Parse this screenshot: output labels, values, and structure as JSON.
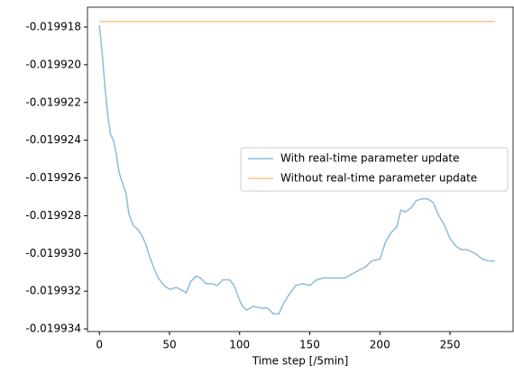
{
  "chart_data": {
    "type": "line",
    "xlabel": "Time step [/5min]",
    "xlim": [
      -8.5,
      295
    ],
    "ylim": [
      -0.01993414,
      -0.01991695
    ],
    "xticks": [
      0,
      50,
      100,
      150,
      200,
      250
    ],
    "yticks": [
      {
        "value": -0.019918,
        "label": "-0.019918"
      },
      {
        "value": -0.01992,
        "label": "-0.019920"
      },
      {
        "value": -0.019922,
        "label": "-0.019922"
      },
      {
        "value": -0.019924,
        "label": "-0.019924"
      },
      {
        "value": -0.019926,
        "label": "-0.019926"
      },
      {
        "value": -0.019928,
        "label": "-0.019928"
      },
      {
        "value": -0.01993,
        "label": "-0.019930"
      },
      {
        "value": -0.019932,
        "label": "-0.019932"
      },
      {
        "value": -0.019934,
        "label": "-0.019934"
      }
    ],
    "legend": "center right",
    "alpha": 0.5,
    "series": [
      {
        "name": "With real-time parameter update",
        "color": "#1f77b4",
        "x": [
          0,
          2,
          4,
          6,
          8,
          10,
          12,
          14,
          17,
          19,
          21,
          24,
          27,
          30,
          33,
          36,
          39,
          42,
          46,
          50,
          55,
          60,
          62,
          65,
          69,
          72,
          76,
          80,
          84,
          88,
          93,
          96,
          99,
          102,
          105,
          110,
          115,
          120,
          124,
          128,
          131,
          135,
          140,
          145,
          150,
          155,
          160,
          165,
          170,
          175,
          180,
          185,
          190,
          194,
          200,
          204,
          208,
          212,
          215,
          218,
          222,
          226,
          230,
          234,
          238,
          242,
          246,
          250,
          254,
          258,
          262,
          268,
          273,
          278,
          282
        ],
        "values": [
          -0.0199179,
          -0.0199194,
          -0.0199212,
          -0.0199227,
          -0.0199237,
          -0.019924,
          -0.0199247,
          -0.0199257,
          -0.0199264,
          -0.0199268,
          -0.0199279,
          -0.0199285,
          -0.0199287,
          -0.019929,
          -0.0199295,
          -0.0199302,
          -0.0199308,
          -0.0199313,
          -0.0199317,
          -0.0199319,
          -0.0199318,
          -0.019932,
          -0.0199321,
          -0.0199315,
          -0.0199312,
          -0.0199313,
          -0.0199316,
          -0.0199316,
          -0.0199317,
          -0.0199314,
          -0.0199314,
          -0.0199317,
          -0.0199323,
          -0.0199328,
          -0.019933,
          -0.0199328,
          -0.0199329,
          -0.0199329,
          -0.0199332,
          -0.0199332,
          -0.0199327,
          -0.0199322,
          -0.0199317,
          -0.0199316,
          -0.0199317,
          -0.0199314,
          -0.0199313,
          -0.0199313,
          -0.0199313,
          -0.0199313,
          -0.0199311,
          -0.0199309,
          -0.0199307,
          -0.0199304,
          -0.0199303,
          -0.0199294,
          -0.0199289,
          -0.0199286,
          -0.0199277,
          -0.0199278,
          -0.0199276,
          -0.0199272,
          -0.0199271,
          -0.0199271,
          -0.0199273,
          -0.019928,
          -0.0199285,
          -0.0199292,
          -0.0199296,
          -0.0199298,
          -0.0199298,
          -0.01993,
          -0.0199303,
          -0.0199304,
          -0.0199304
        ]
      },
      {
        "name": "Without real-time parameter update",
        "color": "#ff7f0e",
        "x": [
          0,
          282
        ],
        "values": [
          -0.01991771,
          -0.01991771
        ]
      }
    ]
  }
}
